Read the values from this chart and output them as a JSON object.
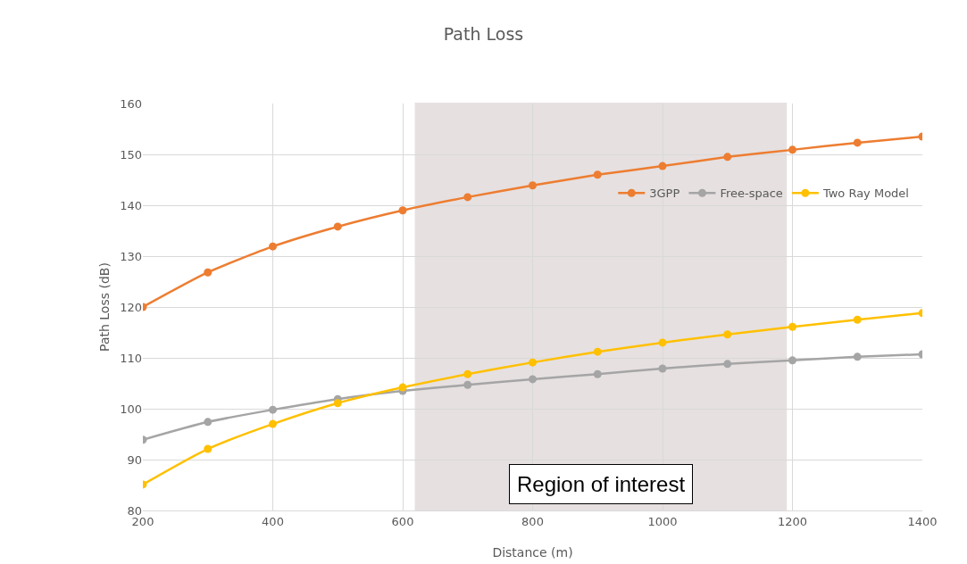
{
  "chart_data": {
    "type": "line",
    "title": "Path Loss",
    "xlabel": "Distance (m)",
    "ylabel": "Path Loss (dB)",
    "x": [
      200,
      300,
      400,
      500,
      600,
      700,
      800,
      900,
      1000,
      1100,
      1200,
      1300,
      1400
    ],
    "series": [
      {
        "name": "3GPP",
        "color": "#ed7d31",
        "values": [
          120,
          126.8,
          131.9,
          135.8,
          139,
          141.6,
          143.9,
          146,
          147.7,
          149.5,
          150.9,
          152.3,
          153.5
        ]
      },
      {
        "name": "Free-space",
        "color": "#a5a5a5",
        "values": [
          93.9,
          97.4,
          99.8,
          101.9,
          103.5,
          104.7,
          105.8,
          106.8,
          107.9,
          108.8,
          109.5,
          110.2,
          110.7
        ]
      },
      {
        "name": "Two Ray Model",
        "color": "#ffc000",
        "values": [
          85.1,
          92.1,
          97,
          101.1,
          104.2,
          106.8,
          109.1,
          111.2,
          113,
          114.6,
          116.1,
          117.5,
          118.8
        ]
      }
    ],
    "xlim": [
      200,
      1400
    ],
    "xticks": [
      200,
      400,
      600,
      800,
      1000,
      1200,
      1400
    ],
    "ylim": [
      80,
      160
    ],
    "yticks": [
      80,
      90,
      100,
      110,
      120,
      130,
      140,
      150,
      160
    ],
    "grid": true,
    "legend": "top right",
    "marker": "circle",
    "line_style": "solid",
    "bands": [
      {
        "axis": "x",
        "from": 620,
        "to": 1190,
        "label": "Region of interest",
        "color": "#3d0c0c"
      }
    ]
  }
}
